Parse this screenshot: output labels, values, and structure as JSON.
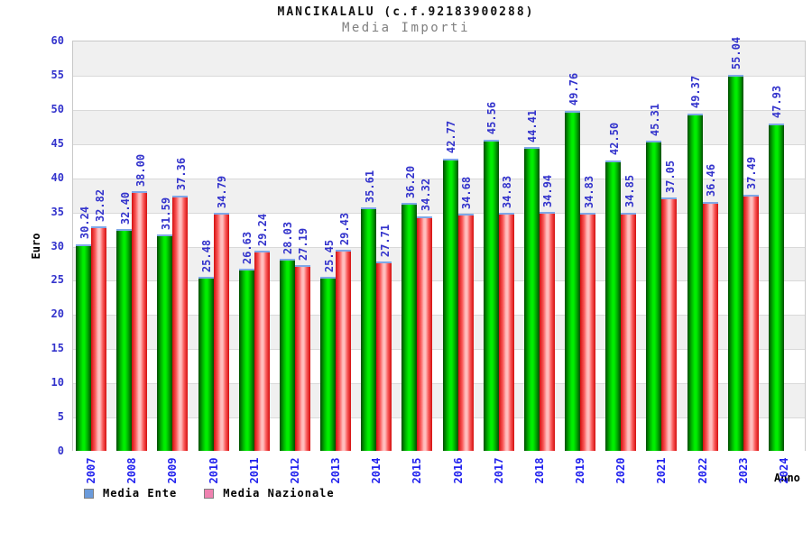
{
  "chart_data": {
    "type": "bar",
    "title": "MANCIKALALU (c.f.92183900288)",
    "subtitle": "Media Importi",
    "xlabel": "Anno",
    "ylabel": "Euro",
    "ylim": [
      0,
      60
    ],
    "yticks": [
      0,
      5,
      10,
      15,
      20,
      25,
      30,
      35,
      40,
      45,
      50,
      55,
      60
    ],
    "grid": "horizontal-bands",
    "legend_position": "bottom-left",
    "categories": [
      "2007",
      "2008",
      "2009",
      "2010",
      "2011",
      "2012",
      "2013",
      "2014",
      "2015",
      "2016",
      "2017",
      "2018",
      "2019",
      "2020",
      "2021",
      "2022",
      "2023",
      "2024"
    ],
    "series": [
      {
        "name": "Media Ente",
        "values": [
          30.24,
          32.4,
          31.59,
          25.48,
          26.63,
          28.03,
          25.45,
          35.61,
          36.2,
          42.77,
          45.56,
          44.41,
          49.76,
          42.5,
          45.31,
          49.37,
          55.04,
          47.93
        ]
      },
      {
        "name": "Media Nazionale",
        "values": [
          32.82,
          38.0,
          37.36,
          34.79,
          29.24,
          27.19,
          29.43,
          27.71,
          34.32,
          34.68,
          34.83,
          34.94,
          34.83,
          34.85,
          37.05,
          36.46,
          37.49,
          null
        ]
      }
    ],
    "colors": {
      "title": "#111111",
      "subtitle": "#808080",
      "tick_label": "#3333cc",
      "value_label": "#3333cc",
      "year_label": "#2222ee",
      "band_gray": "#f0f0f0",
      "band_white": "#ffffff",
      "grid_line": "#d9d9d9",
      "plot_border": "#c8c8c8",
      "ente_edge": "#004c00",
      "ente_mid": "#00ee00",
      "naz_edge": "#d40f0f",
      "naz_mid": "#ffbdbd",
      "bar_cap": "#7fa8e8",
      "legend_ente": "#6b9bdb",
      "legend_nazionale": "#ef82b0",
      "axis_title": "#000000"
    }
  }
}
